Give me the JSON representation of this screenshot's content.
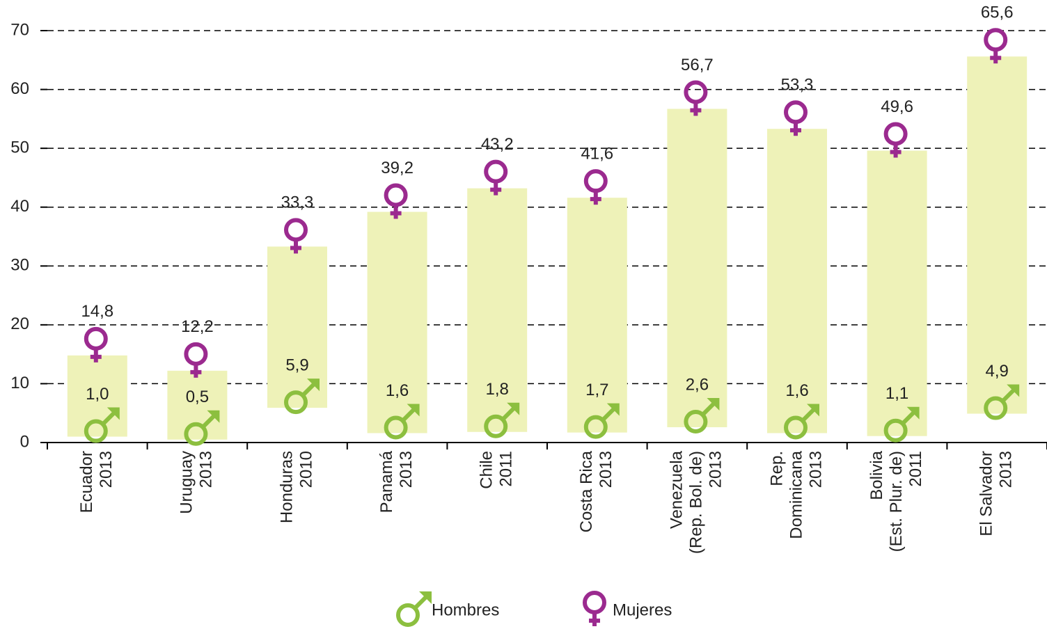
{
  "chart_data": {
    "type": "range",
    "categories": [
      [
        "Ecuador",
        "2013"
      ],
      [
        "Uruguay",
        "2013"
      ],
      [
        "Honduras",
        "2010"
      ],
      [
        "Panamá",
        "2013"
      ],
      [
        "Chile",
        "2011"
      ],
      [
        "Costa Rica",
        "2013"
      ],
      [
        "Venezuela",
        "(Rep. Bol. de)",
        "2013"
      ],
      [
        "Rep.",
        "Dominicana",
        "2013"
      ],
      [
        "Bolivia",
        "(Est. Plur. de)",
        "2011"
      ],
      [
        "El Salvador",
        "2013"
      ]
    ],
    "series": [
      {
        "name": "Hombres",
        "color": "#8cbf3f",
        "values": [
          1.0,
          0.5,
          5.9,
          1.6,
          1.8,
          1.7,
          2.6,
          1.6,
          1.1,
          4.9
        ],
        "value_labels": [
          "1,0",
          "0,5",
          "5,9",
          "1,6",
          "1,8",
          "1,7",
          "2,6",
          "1,6",
          "1,1",
          "4,9"
        ]
      },
      {
        "name": "Mujeres",
        "color": "#9b2a8f",
        "values": [
          14.8,
          12.2,
          33.3,
          39.2,
          43.2,
          41.6,
          56.7,
          53.3,
          49.6,
          65.6
        ],
        "value_labels": [
          "14,8",
          "12,2",
          "33,3",
          "39,2",
          "43,2",
          "41,6",
          "56,7",
          "53,3",
          "49,6",
          "65,6"
        ]
      }
    ],
    "bar_color": "#eef2b8",
    "ylim": [
      0,
      70
    ],
    "yticks": [
      0,
      10,
      20,
      30,
      40,
      50,
      60,
      70
    ],
    "grid": true
  }
}
